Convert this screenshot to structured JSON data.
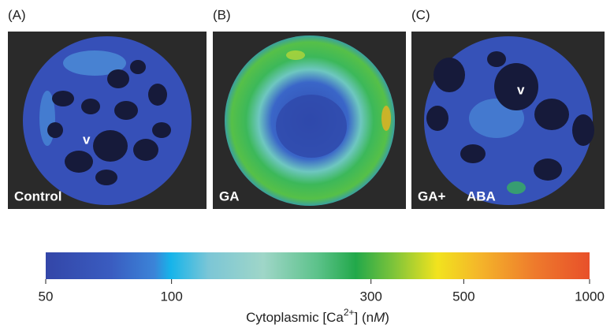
{
  "panels": [
    {
      "letter": "(A)",
      "label": "Control",
      "marker": "v"
    },
    {
      "letter": "(B)",
      "label": "GA"
    },
    {
      "letter": "(C)",
      "label": "GA+",
      "label2": "ABA",
      "marker": "v"
    }
  ],
  "colorbar": {
    "lim": [
      50,
      1000
    ],
    "ticks": [
      50,
      100,
      300,
      500,
      1000
    ],
    "log": true,
    "label_parts": [
      "Cytoplasmic [Ca",
      "2+",
      "] (n",
      "M",
      ")"
    ]
  }
}
